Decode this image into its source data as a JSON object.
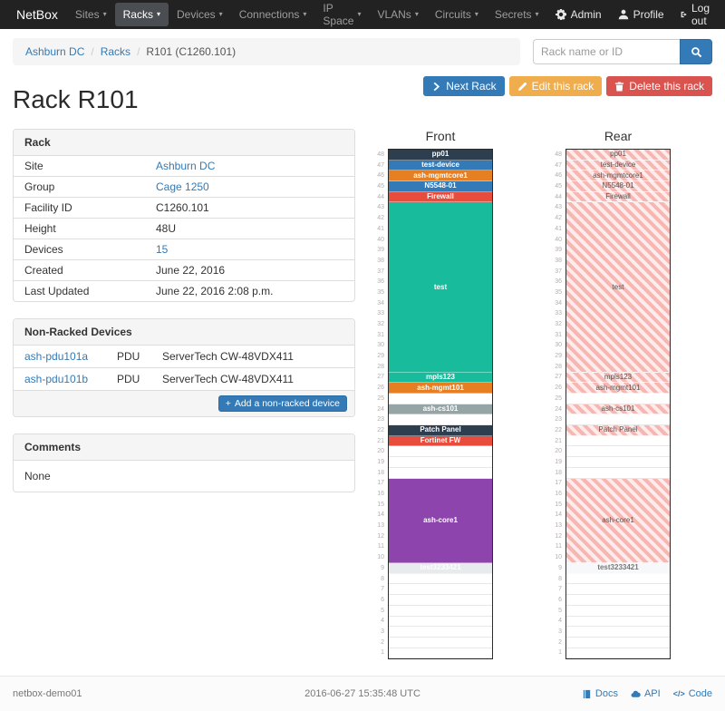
{
  "navbar": {
    "brand": "NetBox",
    "items": [
      {
        "label": "Sites",
        "active": false
      },
      {
        "label": "Racks",
        "active": true
      },
      {
        "label": "Devices",
        "active": false
      },
      {
        "label": "Connections",
        "active": false
      },
      {
        "label": "IP Space",
        "active": false
      },
      {
        "label": "VLANs",
        "active": false
      },
      {
        "label": "Circuits",
        "active": false
      },
      {
        "label": "Secrets",
        "active": false
      }
    ],
    "right": [
      {
        "label": "Admin",
        "icon": "gear-icon"
      },
      {
        "label": "Profile",
        "icon": "user-icon"
      },
      {
        "label": "Log out",
        "icon": "logout-icon"
      }
    ]
  },
  "breadcrumb": {
    "items": [
      "Ashburn DC",
      "Racks",
      "R101 (C1260.101)"
    ]
  },
  "search": {
    "placeholder": "Rack name or ID",
    "icon": "search-icon"
  },
  "actions": {
    "next_rack": "Next Rack",
    "edit": "Edit this rack",
    "delete": "Delete this rack"
  },
  "page_title": "Rack R101",
  "rack_panel": {
    "title": "Rack",
    "rows": [
      {
        "label": "Site",
        "value": "Ashburn DC",
        "link": true
      },
      {
        "label": "Group",
        "value": "Cage 1250",
        "link": true
      },
      {
        "label": "Facility ID",
        "value": "C1260.101",
        "link": false
      },
      {
        "label": "Height",
        "value": "48U",
        "link": false
      },
      {
        "label": "Devices",
        "value": "15",
        "link": true
      },
      {
        "label": "Created",
        "value": "June 22, 2016",
        "link": false
      },
      {
        "label": "Last Updated",
        "value": "June 22, 2016 2:08 p.m.",
        "link": false
      }
    ]
  },
  "non_racked_panel": {
    "title": "Non-Racked Devices",
    "rows": [
      {
        "name": "ash-pdu101a",
        "role": "PDU",
        "model": "ServerTech CW-48VDX411"
      },
      {
        "name": "ash-pdu101b",
        "role": "PDU",
        "model": "ServerTech CW-48VDX411"
      }
    ],
    "add_button": "Add a non-racked device"
  },
  "comments_panel": {
    "title": "Comments",
    "body": "None"
  },
  "elevations": {
    "unit_count": 48,
    "front": {
      "title": "Front",
      "units": [
        {
          "u": 48,
          "h": 1,
          "label": "pp01",
          "color": "#2c3e50",
          "fg": "#ffffff"
        },
        {
          "u": 47,
          "h": 1,
          "label": "test-device",
          "color": "#337ab7",
          "fg": "#ffffff"
        },
        {
          "u": 46,
          "h": 1,
          "label": "ash-mgmtcore1",
          "color": "#e67e22",
          "fg": "#ffffff"
        },
        {
          "u": 45,
          "h": 1,
          "label": "N5548-01",
          "color": "#337ab7",
          "fg": "#ffffff"
        },
        {
          "u": 44,
          "h": 1,
          "label": "Firewall",
          "color": "#e74c3c",
          "fg": "#ffffff"
        },
        {
          "u": 43,
          "h": 16,
          "label": "test",
          "color": "#18bc9c",
          "fg": "#ffffff"
        },
        {
          "u": 27,
          "h": 1,
          "label": "mpls123",
          "color": "#18bc9c",
          "fg": "#ffffff"
        },
        {
          "u": 26,
          "h": 1,
          "label": "ash-mgmt101",
          "color": "#e67e22",
          "fg": "#ffffff"
        },
        {
          "u": 25,
          "h": 1,
          "empty": true
        },
        {
          "u": 24,
          "h": 1,
          "label": "ash-cs101",
          "color": "#95a5a6",
          "fg": "#ffffff"
        },
        {
          "u": 23,
          "h": 1,
          "empty": true
        },
        {
          "u": 22,
          "h": 1,
          "label": "Patch Panel",
          "color": "#2c3e50",
          "fg": "#ffffff"
        },
        {
          "u": 21,
          "h": 1,
          "label": "Fortinet FW",
          "color": "#e74c3c",
          "fg": "#ffffff"
        },
        {
          "u": 20,
          "h": 1,
          "empty": true
        },
        {
          "u": 19,
          "h": 1,
          "empty": true
        },
        {
          "u": 18,
          "h": 1,
          "empty": true
        },
        {
          "u": 17,
          "h": 8,
          "label": "ash-core1",
          "color": "#8e44ad",
          "fg": "#ffffff"
        },
        {
          "u": 9,
          "h": 1,
          "label": "test3233421",
          "color": "#e8ebed",
          "fg": "#ffffff"
        },
        {
          "u": 8,
          "h": 1,
          "empty": true
        },
        {
          "u": 7,
          "h": 1,
          "empty": true
        },
        {
          "u": 6,
          "h": 1,
          "empty": true
        },
        {
          "u": 5,
          "h": 1,
          "empty": true
        },
        {
          "u": 4,
          "h": 1,
          "empty": true
        },
        {
          "u": 3,
          "h": 1,
          "empty": true
        },
        {
          "u": 2,
          "h": 1,
          "empty": true
        },
        {
          "u": 1,
          "h": 1,
          "empty": true
        }
      ]
    },
    "rear": {
      "title": "Rear",
      "units": [
        {
          "u": 48,
          "h": 1,
          "label": "pp01",
          "hatched": true
        },
        {
          "u": 47,
          "h": 1,
          "label": "test-device",
          "hatched": true
        },
        {
          "u": 46,
          "h": 1,
          "label": "ash-mgmtcore1",
          "hatched": true
        },
        {
          "u": 45,
          "h": 1,
          "label": "N5548-01",
          "hatched": true
        },
        {
          "u": 44,
          "h": 1,
          "label": "Firewall",
          "hatched": true
        },
        {
          "u": 43,
          "h": 16,
          "label": "test",
          "hatched": true
        },
        {
          "u": 27,
          "h": 1,
          "label": "mpls123",
          "hatched": true
        },
        {
          "u": 26,
          "h": 1,
          "label": "ash-mgmt101",
          "hatched": true
        },
        {
          "u": 25,
          "h": 1,
          "empty": true
        },
        {
          "u": 24,
          "h": 1,
          "label": "ash-cs101",
          "hatched": true
        },
        {
          "u": 23,
          "h": 1,
          "empty": true
        },
        {
          "u": 22,
          "h": 1,
          "label": "Patch Panel",
          "hatched": true
        },
        {
          "u": 21,
          "h": 1,
          "empty": true
        },
        {
          "u": 20,
          "h": 1,
          "empty": true
        },
        {
          "u": 19,
          "h": 1,
          "empty": true
        },
        {
          "u": 18,
          "h": 1,
          "empty": true
        },
        {
          "u": 17,
          "h": 8,
          "label": "ash-core1",
          "hatched": true
        },
        {
          "u": 9,
          "h": 1,
          "label": "test3233421",
          "color": "#f7f8f9",
          "fg": "#777777"
        },
        {
          "u": 8,
          "h": 1,
          "empty": true
        },
        {
          "u": 7,
          "h": 1,
          "empty": true
        },
        {
          "u": 6,
          "h": 1,
          "empty": true
        },
        {
          "u": 5,
          "h": 1,
          "empty": true
        },
        {
          "u": 4,
          "h": 1,
          "empty": true
        },
        {
          "u": 3,
          "h": 1,
          "empty": true
        },
        {
          "u": 2,
          "h": 1,
          "empty": true
        },
        {
          "u": 1,
          "h": 1,
          "empty": true
        }
      ]
    }
  },
  "footer": {
    "hostname": "netbox-demo01",
    "timestamp": "2016-06-27 15:35:48 UTC",
    "links": [
      {
        "label": "Docs",
        "icon": "book-icon"
      },
      {
        "label": "API",
        "icon": "cloud-icon"
      },
      {
        "label": "Code",
        "icon": "code-icon"
      }
    ]
  },
  "colors": {
    "accent": "#337ab7",
    "warning": "#f0ad4e",
    "danger": "#d9534f",
    "navbar_bg": "#222222",
    "hatch_stripe": "#f6b6b1"
  }
}
